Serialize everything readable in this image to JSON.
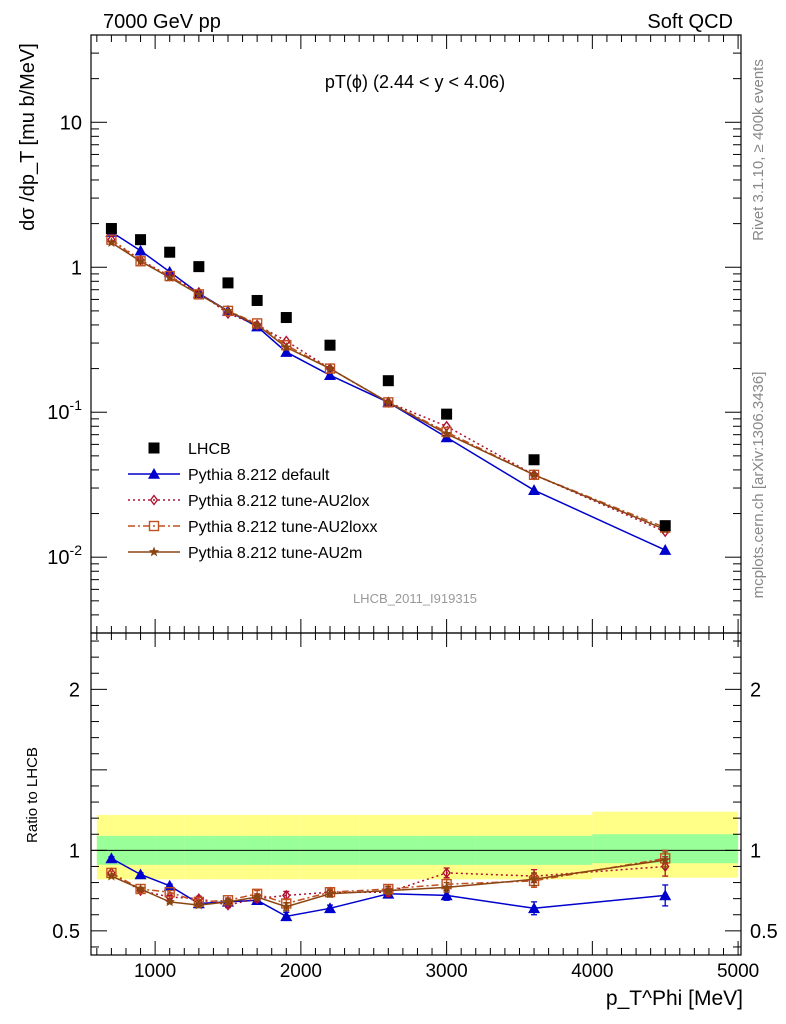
{
  "header": {
    "energy_label": "7000 GeV pp",
    "process_label": "Soft QCD"
  },
  "side_labels": {
    "rivet": "Rivet 3.1.10, ≥ 400k events",
    "mcplots": "mcplots.cern.ch [arXiv:1306.3436]"
  },
  "chart_data": {
    "type": "line",
    "title": "pT(ϕ) (2.44 < y < 4.06)",
    "analysis_id": "LHCB_2011_I919315",
    "xlabel": "p_T^Phi [MeV]",
    "xlim": [
      560,
      5020
    ],
    "x_ticks": [
      1000,
      2000,
      3000,
      4000,
      5000
    ],
    "x": [
      700,
      900,
      1100,
      1300,
      1500,
      1700,
      1900,
      2200,
      2600,
      3000,
      3600,
      4500
    ],
    "main_panel": {
      "ylabel": "dσ /dp_T [mu b/MeV]",
      "yscale": "log",
      "ylim": [
        0.003,
        40
      ],
      "y_tick_labels": [
        {
          "value": 10,
          "label": "10"
        },
        {
          "value": 1,
          "label": "1"
        },
        {
          "value": 0.1,
          "label": "10^-1"
        },
        {
          "value": 0.01,
          "label": "10^-2"
        }
      ],
      "series": [
        {
          "name": "LHCB",
          "style": "data",
          "color": "#000000",
          "marker": "filled-square",
          "values": [
            1.85,
            1.55,
            1.27,
            1.01,
            0.78,
            0.59,
            0.45,
            0.29,
            0.165,
            0.097,
            0.047,
            0.0165
          ]
        },
        {
          "name": "Pythia 8.212 default",
          "color": "#0000cc",
          "marker": "filled-triangle",
          "dash": "",
          "values": [
            1.75,
            1.3,
            0.93,
            0.66,
            0.5,
            0.39,
            0.26,
            0.18,
            0.117,
            0.067,
            0.029,
            0.0112
          ]
        },
        {
          "name": "Pythia 8.212 tune-AU2lox",
          "color": "#b01030",
          "marker": "open-diamond",
          "dash": "2,3",
          "values": [
            1.55,
            1.12,
            0.87,
            0.67,
            0.48,
            0.4,
            0.31,
            0.2,
            0.117,
            0.08,
            0.037,
            0.015
          ]
        },
        {
          "name": "Pythia 8.212 tune-AU2loxx",
          "color": "#c05020",
          "marker": "open-square",
          "dash": "7,3,2,3",
          "values": [
            1.55,
            1.1,
            0.87,
            0.65,
            0.5,
            0.41,
            0.29,
            0.2,
            0.117,
            0.073,
            0.037,
            0.016
          ]
        },
        {
          "name": "Pythia 8.212 tune-AU2m",
          "color": "#8b4513",
          "marker": "star",
          "dash": "",
          "values": [
            1.48,
            1.1,
            0.85,
            0.65,
            0.5,
            0.4,
            0.28,
            0.2,
            0.117,
            0.071,
            0.037,
            0.0155
          ]
        }
      ]
    },
    "ratio_panel": {
      "ylabel": "Ratio to LHCB",
      "ylim": [
        0.35,
        2.35
      ],
      "y_ticks": [
        0.5,
        1,
        2
      ],
      "reference_line": 1,
      "band_yellow": {
        "color": "#ffff88",
        "edges": [
          600,
          800,
          1000,
          1200,
          1400,
          1600,
          1800,
          2000,
          2400,
          2800,
          3200,
          4000,
          5000
        ],
        "low": [
          0.82,
          0.82,
          0.82,
          0.82,
          0.82,
          0.82,
          0.82,
          0.82,
          0.82,
          0.82,
          0.82,
          0.83
        ],
        "high": [
          1.22,
          1.22,
          1.22,
          1.22,
          1.22,
          1.22,
          1.22,
          1.22,
          1.22,
          1.22,
          1.22,
          1.24
        ]
      },
      "band_green": {
        "color": "#99ff99",
        "edges": [
          600,
          800,
          1000,
          1200,
          1400,
          1600,
          1800,
          2000,
          2400,
          2800,
          3200,
          4000,
          5000
        ],
        "low": [
          0.91,
          0.91,
          0.91,
          0.91,
          0.91,
          0.91,
          0.91,
          0.91,
          0.91,
          0.91,
          0.91,
          0.92
        ],
        "high": [
          1.09,
          1.09,
          1.09,
          1.09,
          1.09,
          1.09,
          1.09,
          1.09,
          1.09,
          1.09,
          1.09,
          1.1
        ]
      },
      "series": [
        {
          "name": "Pythia 8.212 default",
          "values": [
            0.95,
            0.85,
            0.78,
            0.67,
            0.68,
            0.69,
            0.59,
            0.64,
            0.73,
            0.72,
            0.64,
            0.72
          ],
          "errors": [
            0.01,
            0.01,
            0.01,
            0.015,
            0.015,
            0.02,
            0.025,
            0.02,
            0.025,
            0.03,
            0.04,
            0.065
          ]
        },
        {
          "name": "Pythia 8.212 tune-AU2lox",
          "values": [
            0.86,
            0.75,
            0.71,
            0.7,
            0.66,
            0.7,
            0.72,
            0.74,
            0.74,
            0.86,
            0.84,
            0.9
          ],
          "errors": [
            0.01,
            0.01,
            0.01,
            0.015,
            0.015,
            0.02,
            0.025,
            0.02,
            0.025,
            0.03,
            0.04,
            0.06
          ]
        },
        {
          "name": "Pythia 8.212 tune-AU2loxx",
          "values": [
            0.86,
            0.76,
            0.74,
            0.68,
            0.69,
            0.73,
            0.67,
            0.74,
            0.76,
            0.79,
            0.81,
            0.95
          ],
          "errors": [
            0.01,
            0.01,
            0.01,
            0.015,
            0.015,
            0.02,
            0.025,
            0.02,
            0.025,
            0.03,
            0.04,
            0.05
          ]
        },
        {
          "name": "Pythia 8.212 tune-AU2m",
          "values": [
            0.84,
            0.76,
            0.68,
            0.66,
            0.68,
            0.71,
            0.65,
            0.73,
            0.75,
            0.77,
            0.82,
            0.94
          ],
          "errors": [
            0.01,
            0.01,
            0.01,
            0.015,
            0.015,
            0.02,
            0.025,
            0.02,
            0.025,
            0.03,
            0.04,
            0.05
          ]
        }
      ]
    }
  }
}
